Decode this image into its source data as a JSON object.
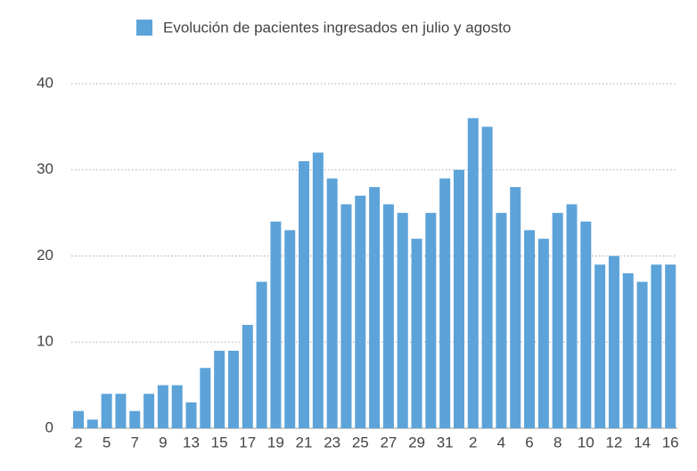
{
  "chart_data": {
    "type": "bar",
    "series": [
      {
        "name": "Evolución de pacientes ingresados en julio y agosto",
        "color": "#5ca3d9",
        "values": [
          2,
          1,
          4,
          4,
          2,
          4,
          5,
          5,
          3,
          7,
          9,
          9,
          12,
          17,
          24,
          23,
          31,
          32,
          29,
          26,
          27,
          28,
          26,
          25,
          22,
          25,
          29,
          30,
          36,
          35,
          25,
          28,
          23,
          22,
          25,
          26,
          24,
          19,
          20,
          18,
          17,
          19,
          19
        ]
      }
    ],
    "categories": [
      "2",
      null,
      "5",
      null,
      "7",
      null,
      "9",
      null,
      "13",
      null,
      "15",
      null,
      "17",
      null,
      "19",
      null,
      "21",
      null,
      "23",
      null,
      "25",
      null,
      "27",
      null,
      "29",
      null,
      "31",
      null,
      "2",
      null,
      "4",
      null,
      "6",
      null,
      "8",
      null,
      "10",
      null,
      "12",
      null,
      "14",
      null,
      "16"
    ],
    "ylim": [
      0,
      40
    ],
    "yticks": [
      0,
      10,
      20,
      30,
      40
    ],
    "grid": true,
    "legend": "top"
  }
}
